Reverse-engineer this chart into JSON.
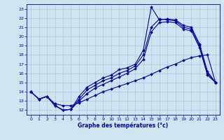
{
  "xlabel": "Graphe des températures (°c)",
  "bg_color": "#cce5f0",
  "line_color": "#0000aa",
  "grid_color": "#aaccdd",
  "xlim": [
    -0.5,
    23.5
  ],
  "ylim": [
    11.5,
    23.5
  ],
  "xticks": [
    0,
    1,
    2,
    3,
    4,
    5,
    6,
    7,
    8,
    9,
    10,
    11,
    12,
    13,
    14,
    15,
    16,
    17,
    18,
    19,
    20,
    21,
    22,
    23
  ],
  "yticks": [
    12,
    13,
    14,
    15,
    16,
    17,
    18,
    19,
    20,
    21,
    22,
    23
  ],
  "line1_x": [
    0,
    1,
    2,
    3,
    4,
    5,
    6,
    7,
    8,
    9,
    10,
    11,
    12,
    13,
    14,
    15,
    16,
    17,
    18,
    19,
    20,
    21,
    22,
    23
  ],
  "line1_y": [
    14.0,
    13.2,
    13.5,
    12.5,
    12.0,
    12.1,
    13.5,
    14.5,
    15.0,
    15.5,
    15.8,
    16.4,
    16.6,
    17.0,
    18.5,
    23.2,
    21.8,
    21.9,
    21.8,
    21.2,
    21.0,
    19.2,
    16.2,
    15.0
  ],
  "line2_x": [
    0,
    1,
    2,
    3,
    4,
    5,
    6,
    7,
    8,
    9,
    10,
    11,
    12,
    13,
    14,
    15,
    16,
    17,
    18,
    19,
    20,
    21,
    22,
    23
  ],
  "line2_y": [
    14.0,
    13.2,
    13.5,
    12.5,
    12.0,
    12.1,
    13.2,
    14.2,
    14.7,
    15.2,
    15.5,
    16.0,
    16.3,
    16.8,
    18.0,
    21.0,
    21.9,
    21.8,
    21.7,
    21.0,
    20.8,
    19.0,
    16.0,
    15.0
  ],
  "line3_x": [
    0,
    1,
    2,
    3,
    4,
    5,
    6,
    7,
    8,
    9,
    10,
    11,
    12,
    13,
    14,
    15,
    16,
    17,
    18,
    19,
    20,
    21,
    22,
    23
  ],
  "line3_y": [
    14.0,
    13.2,
    13.5,
    12.5,
    12.0,
    12.1,
    13.0,
    13.8,
    14.4,
    14.8,
    15.2,
    15.6,
    16.0,
    16.5,
    17.5,
    20.5,
    21.5,
    21.6,
    21.5,
    20.8,
    20.6,
    18.8,
    15.8,
    15.0
  ],
  "line4_x": [
    0,
    1,
    2,
    3,
    4,
    5,
    6,
    7,
    8,
    9,
    10,
    11,
    12,
    13,
    14,
    15,
    16,
    17,
    18,
    19,
    20,
    21,
    22,
    23
  ],
  "line4_y": [
    14.0,
    13.2,
    13.5,
    12.7,
    12.5,
    12.5,
    12.8,
    13.2,
    13.6,
    14.0,
    14.3,
    14.6,
    14.9,
    15.2,
    15.5,
    15.9,
    16.3,
    16.7,
    17.0,
    17.4,
    17.7,
    17.9,
    18.0,
    15.0
  ]
}
